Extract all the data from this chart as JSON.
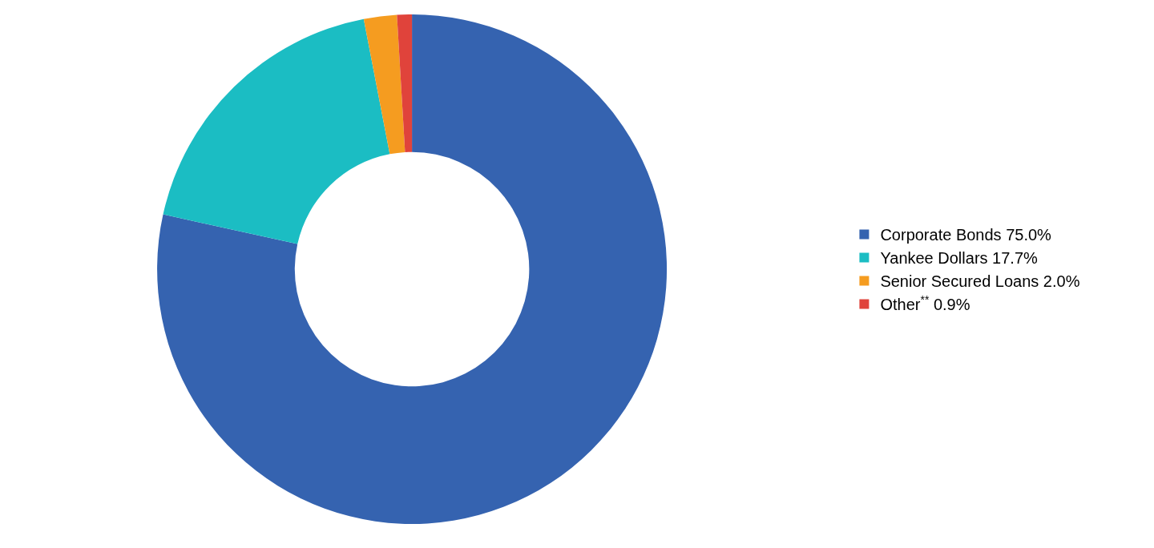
{
  "chart_data": {
    "type": "donut",
    "categories": [
      "Corporate Bonds",
      "Yankee Dollars",
      "Senior Secured Loans",
      "Other$^{**}$"
    ],
    "values": [
      75.0,
      17.7,
      2.0,
      0.9
    ],
    "value_labels": [
      "75.0%",
      "17.7%",
      "2.0%",
      "0.9%"
    ],
    "colors": [
      "#3563b0",
      "#1bbdc3",
      "#f59c20",
      "#e0433b"
    ],
    "legend": "right"
  }
}
